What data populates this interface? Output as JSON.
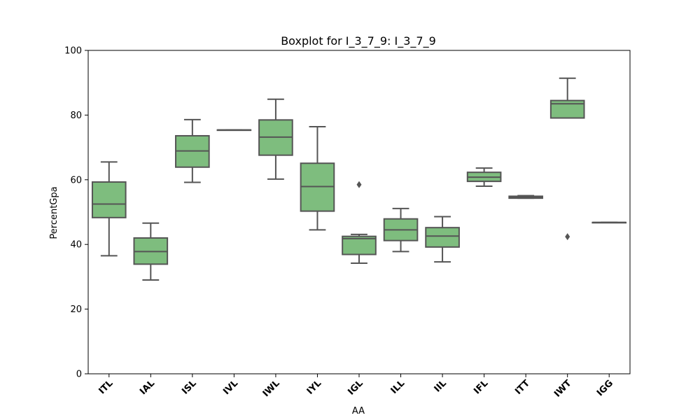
{
  "chart_data": {
    "type": "box",
    "title": "Boxplot for I_3_7_9: I_3_7_9",
    "xlabel": "AA",
    "ylabel": "PercentGpa",
    "ylim": [
      0,
      100
    ],
    "yticks": [
      0,
      20,
      40,
      60,
      80,
      100
    ],
    "categories": [
      "ITL",
      "IAL",
      "ISL",
      "IVL",
      "IWL",
      "IYL",
      "IGL",
      "ILL",
      "IIL",
      "IFL",
      "ITT",
      "IWT",
      "IGG"
    ],
    "boxes": [
      {
        "category": "ITL",
        "whisker_low": 36.5,
        "q1": 48.3,
        "median": 52.5,
        "q3": 59.3,
        "whisker_high": 65.5,
        "outliers": []
      },
      {
        "category": "IAL",
        "whisker_low": 29.0,
        "q1": 33.9,
        "median": 37.8,
        "q3": 42.0,
        "whisker_high": 46.6,
        "outliers": []
      },
      {
        "category": "ISL",
        "whisker_low": 59.2,
        "q1": 63.9,
        "median": 68.9,
        "q3": 73.6,
        "whisker_high": 78.6,
        "outliers": []
      },
      {
        "category": "IVL",
        "whisker_low": 75.4,
        "q1": 75.4,
        "median": 75.4,
        "q3": 75.4,
        "whisker_high": 75.4,
        "outliers": []
      },
      {
        "category": "IWL",
        "whisker_low": 60.2,
        "q1": 67.6,
        "median": 73.2,
        "q3": 78.5,
        "whisker_high": 84.9,
        "outliers": []
      },
      {
        "category": "IYL",
        "whisker_low": 44.5,
        "q1": 50.3,
        "median": 57.9,
        "q3": 65.1,
        "whisker_high": 76.4,
        "outliers": []
      },
      {
        "category": "IGL",
        "whisker_low": 34.2,
        "q1": 36.9,
        "median": 41.8,
        "q3": 42.5,
        "whisker_high": 43.1,
        "outliers": [
          58.5
        ]
      },
      {
        "category": "ILL",
        "whisker_low": 37.8,
        "q1": 41.2,
        "median": 44.5,
        "q3": 47.9,
        "whisker_high": 51.1,
        "outliers": []
      },
      {
        "category": "IIL",
        "whisker_low": 34.6,
        "q1": 39.2,
        "median": 42.6,
        "q3": 45.2,
        "whisker_high": 48.6,
        "outliers": []
      },
      {
        "category": "IFL",
        "whisker_low": 58.0,
        "q1": 59.5,
        "median": 60.8,
        "q3": 62.3,
        "whisker_high": 63.6,
        "outliers": []
      },
      {
        "category": "ITT",
        "whisker_low": 54.3,
        "q1": 54.3,
        "median": 54.6,
        "q3": 54.9,
        "whisker_high": 55.1,
        "outliers": []
      },
      {
        "category": "IWT",
        "whisker_low": 79.1,
        "q1": 79.1,
        "median": 83.5,
        "q3": 84.5,
        "whisker_high": 91.4,
        "outliers": [
          42.4
        ]
      },
      {
        "category": "IGG",
        "whisker_low": 46.8,
        "q1": 46.8,
        "median": 46.8,
        "q3": 46.8,
        "whisker_high": 46.8,
        "outliers": []
      }
    ],
    "box_color": "#7ebd7e",
    "line_color": "#555555",
    "grid": false,
    "legend": "none"
  }
}
